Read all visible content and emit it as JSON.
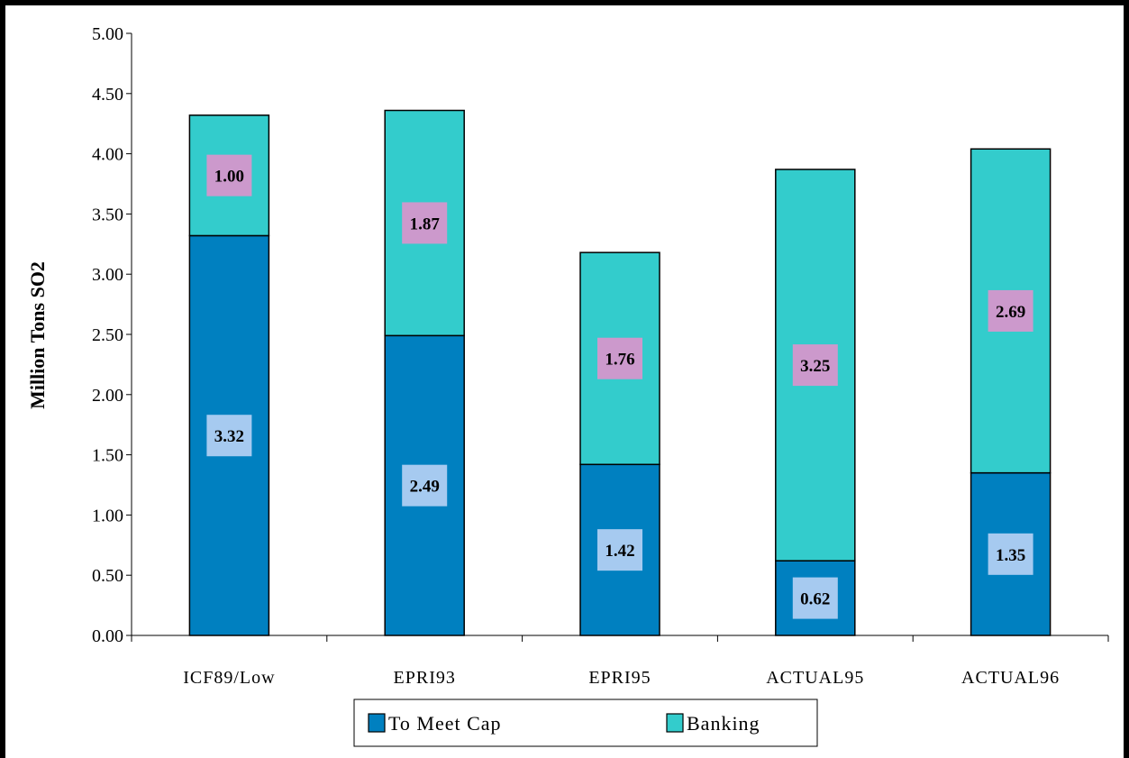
{
  "chart_data": {
    "type": "bar",
    "stacked": true,
    "categories": [
      "ICF89/Low",
      "EPRI93",
      "EPRI95",
      "ACTUAL95",
      "ACTUAL96"
    ],
    "series": [
      {
        "name": "To Meet Cap",
        "values": [
          3.32,
          2.49,
          1.42,
          0.62,
          1.35
        ],
        "labels": [
          "3.32",
          "2.49",
          "1.42",
          "0.62",
          "1.35"
        ],
        "color": "#0080C0",
        "label_bg": "#A6CAF0"
      },
      {
        "name": "Banking",
        "values": [
          1.0,
          1.87,
          1.76,
          3.25,
          2.69
        ],
        "labels": [
          "1.00",
          "1.87",
          "1.76",
          "3.25",
          "2.69"
        ],
        "color": "#33CCCC",
        "label_bg": "#CC99CC"
      }
    ],
    "ylabel": "Million Tons SO2",
    "ylim": [
      0,
      5
    ],
    "ytick_labels": [
      "0.00",
      "0.50",
      "1.00",
      "1.50",
      "2.00",
      "2.50",
      "3.00",
      "3.50",
      "4.00",
      "4.50",
      "5.00"
    ],
    "grid": false,
    "legend": "bottom-center"
  }
}
